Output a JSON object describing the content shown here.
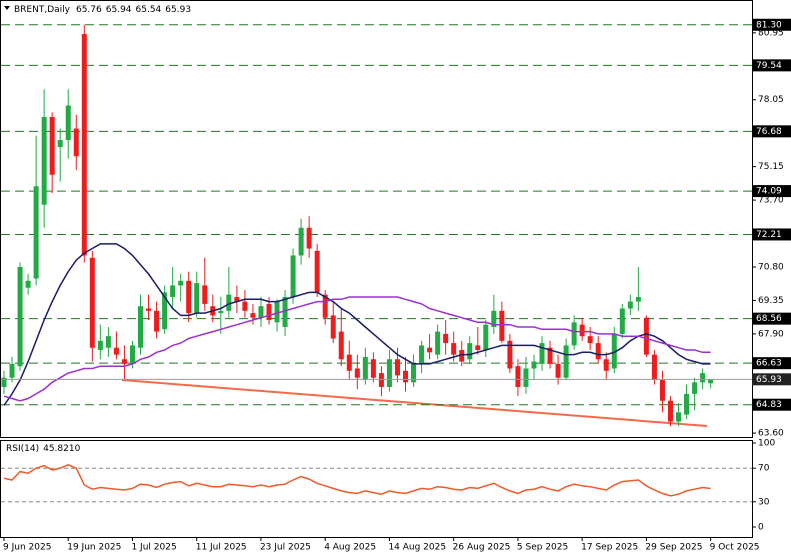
{
  "chart_data": [
    {
      "type": "candlestick",
      "title": "BRENT,Daily",
      "categories": [
        "9 Jun 2025",
        null,
        null,
        null,
        null,
        null,
        null,
        null,
        "19 Jun 2025",
        null,
        null,
        null,
        null,
        null,
        null,
        null,
        "1 Jul 2025",
        null,
        null,
        null,
        null,
        null,
        null,
        null,
        "11 Jul 2025",
        null,
        null,
        null,
        null,
        null,
        null,
        null,
        "23 Jul 2025",
        null,
        null,
        null,
        null,
        null,
        null,
        null,
        "4 Aug 2025",
        null,
        null,
        null,
        null,
        null,
        null,
        null,
        "14 Aug 2025",
        null,
        null,
        null,
        null,
        null,
        null,
        null,
        "26 Aug 2025",
        null,
        null,
        null,
        null,
        null,
        null,
        null,
        "5 Sep 2025",
        null,
        null,
        null,
        null,
        null,
        null,
        null,
        "17 Sep 2025",
        null,
        null,
        null,
        null,
        null,
        null,
        null,
        "29 Sep 2025",
        null,
        null,
        null,
        null,
        null,
        null,
        null,
        "9 Oct 2025"
      ],
      "open": [
        65.6,
        66.0,
        66.5,
        69.9,
        70.3,
        73.5,
        77.3,
        76.0,
        76.3,
        76.8,
        80.9,
        71.2,
        67.2,
        67.3,
        67.3,
        66.8,
        66.6,
        67.3,
        69.0,
        68.9,
        68.1,
        69.5,
        70.0,
        70.2,
        68.8,
        70.0,
        69.1,
        68.8,
        68.9,
        69.5,
        69.3,
        68.8,
        68.6,
        69.2,
        68.4,
        68.2,
        69.5,
        71.3,
        72.5,
        71.5,
        69.6,
        68.7,
        68.0,
        67.0,
        66.4,
        65.9,
        66.8,
        66.2,
        65.6,
        66.8,
        66.3,
        65.8,
        66.6,
        67.3,
        67.0,
        67.9,
        67.5,
        67.2,
        66.8,
        67.4,
        67.2,
        68.2,
        68.9,
        67.6,
        66.5,
        65.6,
        66.4,
        66.6,
        67.3,
        66.6,
        66.0,
        67.4,
        68.3,
        67.8,
        67.5,
        66.8,
        66.4,
        67.9,
        69.0,
        69.3,
        68.6,
        67.0,
        65.9,
        65.0,
        64.1,
        64.4,
        65.3,
        65.8,
        65.76
      ],
      "high": [
        66.3,
        66.9,
        71.0,
        70.5,
        76.5,
        78.5,
        77.5,
        76.8,
        78.5,
        77.4,
        81.3,
        71.5,
        68.3,
        68.2,
        68.0,
        67.4,
        67.6,
        69.6,
        69.6,
        69.3,
        70.0,
        70.8,
        70.5,
        70.6,
        70.6,
        71.2,
        69.6,
        69.5,
        70.8,
        70.0,
        69.8,
        69.2,
        69.5,
        69.5,
        69.4,
        69.8,
        71.6,
        72.9,
        73.0,
        71.8,
        69.8,
        69.3,
        69.0,
        67.6,
        67.0,
        67.3,
        67.1,
        66.5,
        67.2,
        67.3,
        66.9,
        67.0,
        67.6,
        67.9,
        68.3,
        68.5,
        68.0,
        67.6,
        67.8,
        68.2,
        68.5,
        69.6,
        69.3,
        67.9,
        66.8,
        66.9,
        67.0,
        67.8,
        67.6,
        67.0,
        67.7,
        68.7,
        68.6,
        68.2,
        67.8,
        67.1,
        68.2,
        69.2,
        69.6,
        70.8,
        68.7,
        67.2,
        66.3,
        65.2,
        64.9,
        65.7,
        66.0,
        66.4,
        65.94
      ],
      "low": [
        65.3,
        65.8,
        66.3,
        69.6,
        70.0,
        72.5,
        74.0,
        74.5,
        75.5,
        75.0,
        71.0,
        66.7,
        66.8,
        66.9,
        66.8,
        65.9,
        66.4,
        67.0,
        68.5,
        67.7,
        67.9,
        69.0,
        69.3,
        68.4,
        68.6,
        68.9,
        68.4,
        67.9,
        68.6,
        68.8,
        68.6,
        68.3,
        68.2,
        68.3,
        68.0,
        67.8,
        69.2,
        70.9,
        71.2,
        69.5,
        68.3,
        67.5,
        66.5,
        65.9,
        65.5,
        65.7,
        65.8,
        65.2,
        65.4,
        65.8,
        65.4,
        65.6,
        66.2,
        66.8,
        66.8,
        67.0,
        66.7,
        66.5,
        66.6,
        67.0,
        66.9,
        67.9,
        67.5,
        66.2,
        65.2,
        65.3,
        65.9,
        66.3,
        66.4,
        65.7,
        65.9,
        67.2,
        67.6,
        67.2,
        66.6,
        65.9,
        66.2,
        67.7,
        68.7,
        68.9,
        66.9,
        65.7,
        64.5,
        63.9,
        63.9,
        64.2,
        64.6,
        65.5,
        65.54
      ],
      "close": [
        66.0,
        66.6,
        70.8,
        70.2,
        74.3,
        77.3,
        74.8,
        76.3,
        77.8,
        75.6,
        71.3,
        67.3,
        67.6,
        67.8,
        67.0,
        66.6,
        67.4,
        69.1,
        68.9,
        68.0,
        69.7,
        70.0,
        70.2,
        68.8,
        70.1,
        69.2,
        68.7,
        68.9,
        69.6,
        69.3,
        68.9,
        68.6,
        69.1,
        68.5,
        69.3,
        69.5,
        71.3,
        72.5,
        71.6,
        69.7,
        68.6,
        67.7,
        66.8,
        66.3,
        66.0,
        66.9,
        66.0,
        65.6,
        66.8,
        66.1,
        65.8,
        66.6,
        67.4,
        67.1,
        68.0,
        67.5,
        67.0,
        66.7,
        67.5,
        67.2,
        68.3,
        68.9,
        67.6,
        66.4,
        65.6,
        66.4,
        66.7,
        67.5,
        66.6,
        66.0,
        67.4,
        68.4,
        67.8,
        67.5,
        66.8,
        66.3,
        67.9,
        69.0,
        69.3,
        69.5,
        67.0,
        65.9,
        65.0,
        64.1,
        64.5,
        65.3,
        65.8,
        66.2,
        65.93
      ],
      "up_color": "#22aa44",
      "down_color": "#ee1c1c",
      "ma": [
        {
          "color": "#1b1b6b",
          "values": [
            64.8,
            65.3,
            65.9,
            66.7,
            67.6,
            68.5,
            69.3,
            70.0,
            70.6,
            71.1,
            71.4,
            71.6,
            71.8,
            71.8,
            71.8,
            71.6,
            71.3,
            70.9,
            70.5,
            70.0,
            69.5,
            69.0,
            68.7,
            68.7,
            68.8,
            68.8,
            68.9,
            69.0,
            69.2,
            69.3,
            69.4,
            69.4,
            69.4,
            69.3,
            69.3,
            69.4,
            69.5,
            69.6,
            69.7,
            69.7,
            69.5,
            69.3,
            69.0,
            68.8,
            68.5,
            68.2,
            67.9,
            67.6,
            67.3,
            67.0,
            66.8,
            66.6,
            66.6,
            66.6,
            66.7,
            66.8,
            66.9,
            67.0,
            67.0,
            67.1,
            67.2,
            67.3,
            67.4,
            67.4,
            67.4,
            67.4,
            67.4,
            67.3,
            67.2,
            67.1,
            67.0,
            67.0,
            67.1,
            67.1,
            67.0,
            67.0,
            67.1,
            67.3,
            67.6,
            67.8,
            67.9,
            67.8,
            67.6,
            67.3,
            67.0,
            66.8,
            66.7,
            66.6,
            66.6
          ]
        },
        {
          "color": "#9b30d0",
          "values": [
            65.2,
            65.1,
            65.0,
            65.1,
            65.3,
            65.5,
            65.8,
            66.0,
            66.2,
            66.3,
            66.4,
            66.4,
            66.5,
            66.5,
            66.5,
            66.5,
            66.6,
            66.8,
            66.9,
            67.1,
            67.2,
            67.4,
            67.5,
            67.7,
            67.8,
            67.9,
            68.0,
            68.1,
            68.2,
            68.3,
            68.4,
            68.5,
            68.6,
            68.7,
            68.8,
            68.9,
            69.0,
            69.1,
            69.2,
            69.3,
            69.3,
            69.4,
            69.4,
            69.5,
            69.5,
            69.5,
            69.5,
            69.5,
            69.5,
            69.5,
            69.4,
            69.3,
            69.2,
            69.0,
            68.9,
            68.8,
            68.7,
            68.6,
            68.5,
            68.4,
            68.4,
            68.3,
            68.3,
            68.3,
            68.2,
            68.2,
            68.2,
            68.1,
            68.1,
            68.1,
            68.1,
            68.0,
            68.0,
            68.0,
            67.9,
            67.9,
            67.9,
            67.8,
            67.8,
            67.8,
            67.7,
            67.6,
            67.5,
            67.4,
            67.3,
            67.2,
            67.2,
            67.1,
            67.1
          ]
        }
      ],
      "ylim": [
        63.43,
        82.33
      ],
      "yticks": [
        80.95,
        78.05,
        75.15,
        {
          "value": 73.7,
          "label": "73.70"
        },
        {
          "value": 70.8,
          "label": "70.80"
        },
        69.35,
        {
          "value": 67.9,
          "label": "67.90"
        },
        {
          "value": 63.6,
          "label": "63.60"
        }
      ],
      "levels": [
        {
          "value": 81.3,
          "label": "81.30"
        },
        79.54,
        76.68,
        74.09,
        72.21,
        68.56,
        66.63,
        64.83
      ],
      "level_color": "#1f7a1f"
    },
    {
      "type": "line",
      "title": "RSI(14)",
      "last_label": "45.8210",
      "color": "#f05a28",
      "values": [
        58,
        56,
        66,
        64,
        70,
        73,
        68,
        70,
        74,
        70,
        50,
        45,
        47,
        46,
        45,
        44,
        46,
        51,
        50,
        47,
        51,
        53,
        54,
        49,
        52,
        50,
        48,
        48,
        51,
        50,
        49,
        48,
        50,
        48,
        50,
        51,
        56,
        60,
        57,
        52,
        49,
        46,
        43,
        41,
        40,
        43,
        41,
        39,
        43,
        41,
        40,
        43,
        46,
        45,
        48,
        47,
        45,
        44,
        47,
        46,
        49,
        52,
        47,
        43,
        40,
        44,
        45,
        48,
        45,
        43,
        48,
        51,
        49,
        48,
        46,
        44,
        50,
        54,
        55,
        56,
        49,
        44,
        40,
        37,
        39,
        43,
        45,
        47,
        45.821
      ],
      "ylim": [
        0,
        100
      ],
      "yticks": [
        100,
        70,
        30,
        0
      ]
    }
  ]
}
